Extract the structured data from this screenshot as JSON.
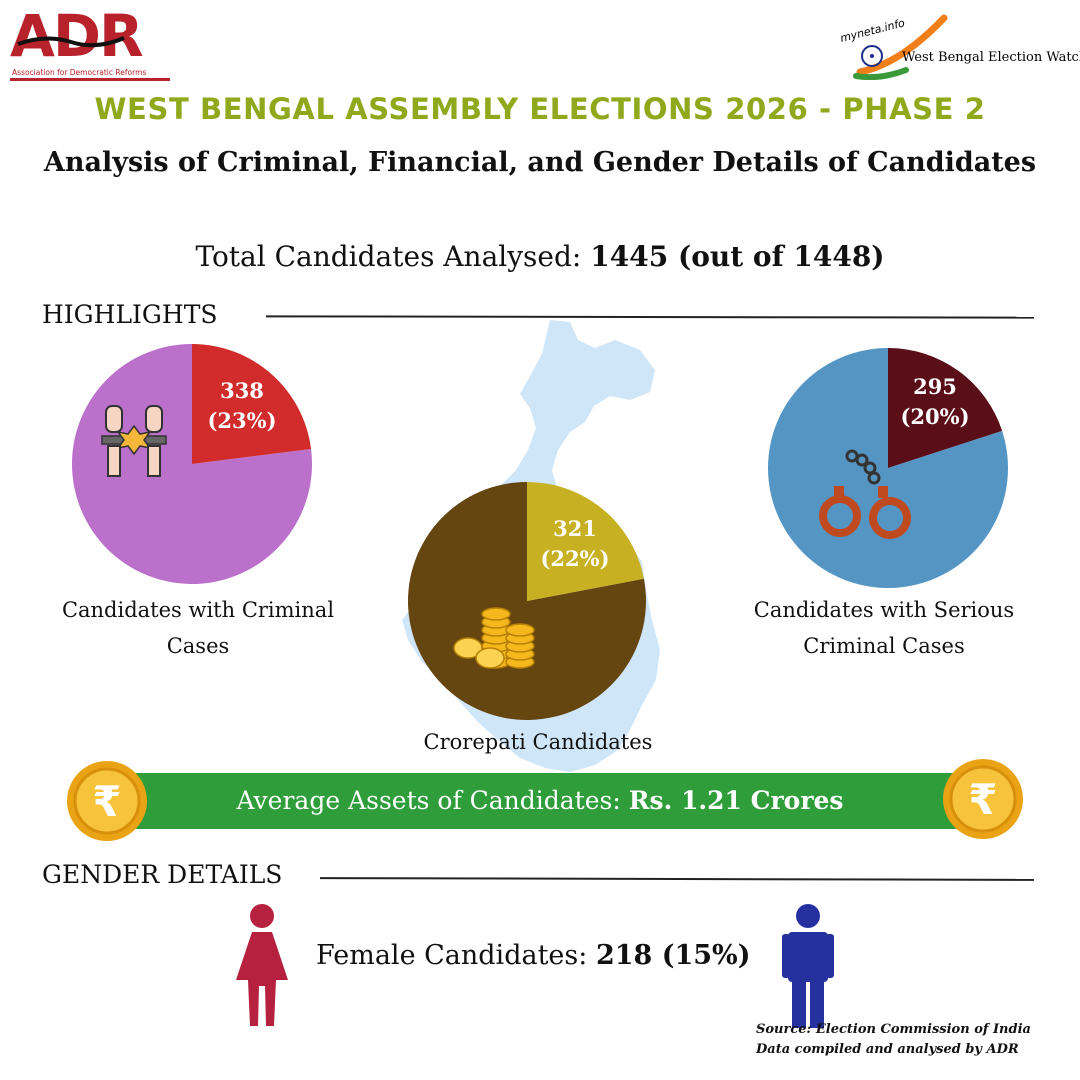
{
  "logos": {
    "adr": {
      "name": "ADR",
      "subtitle": "Association for Democratic Reforms",
      "color": "#b8222a"
    },
    "myneta": {
      "site": "myneta.info",
      "name": "West Bengal Election Watch"
    }
  },
  "header": {
    "title": "WEST BENGAL ASSEMBLY ELECTIONS 2026 - PHASE 2",
    "subtitle": "Analysis of Criminal, Financial, and Gender Details of Candidates",
    "total_label": "Total Candidates Analysed:",
    "total_value": "1445 (out of 1448)"
  },
  "sections": {
    "highlights": "HIGHLIGHTS",
    "gender": "GENDER DETAILS"
  },
  "colors": {
    "title": "#8fa81c",
    "criminal_slice": "#d22b2b",
    "criminal_rest": "#bb70cc",
    "crorepati_slice": "#c8b023",
    "crorepati_rest": "#654510",
    "serious_slice": "#5a0f18",
    "serious_rest": "#5595c4",
    "assets_bar": "#2f9e3a",
    "female": "#b5213e",
    "male": "#2631a0",
    "map": "#cfe6f8"
  },
  "chart_data": [
    {
      "type": "pie",
      "caption": "Candidates with Criminal Cases",
      "slice": {
        "count": 338,
        "percent": 23,
        "label_count": "338",
        "label_percent": "(23%)"
      },
      "icon": "fists-icon"
    },
    {
      "type": "pie",
      "caption": "Crorepati Candidates",
      "slice": {
        "count": 321,
        "percent": 22,
        "label_count": "321",
        "label_percent": "(22%)"
      },
      "icon": "coins-icon"
    },
    {
      "type": "pie",
      "caption": "Candidates with Serious Criminal Cases",
      "slice": {
        "count": 295,
        "percent": 20,
        "label_count": "295",
        "label_percent": "(20%)"
      },
      "icon": "handcuffs-icon"
    }
  ],
  "assets": {
    "label": "Average Assets of Candidates:",
    "value": "Rs. 1.21 Crores",
    "coin_symbol": "₹"
  },
  "gender": {
    "female_label": "Female Candidates:",
    "female_value": "218 (15%)"
  },
  "source": {
    "line1": "Source: Election Commission of India",
    "line2": "Data compiled and analysed by ADR"
  }
}
